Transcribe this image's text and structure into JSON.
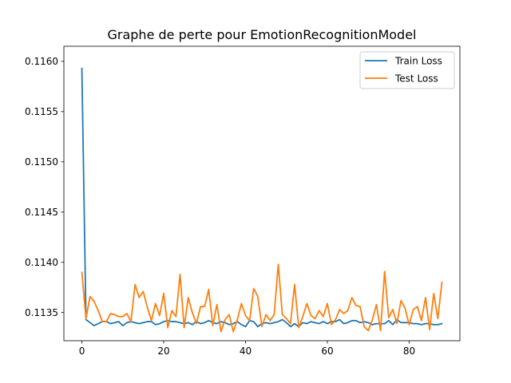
{
  "chart_data": {
    "type": "line",
    "title": "Graphe de perte pour EmotionRecognitionModel",
    "xlabel": "",
    "ylabel": "",
    "xlim": [
      -4.4,
      92.4
    ],
    "ylim": [
      0.11322,
      0.11615
    ],
    "x_ticks": [
      0,
      20,
      40,
      60,
      80
    ],
    "y_ticks": [
      0.1135,
      0.114,
      0.1145,
      0.115,
      0.1155,
      0.116
    ],
    "y_tick_labels": [
      "0.1135",
      "0.1140",
      "0.1145",
      "0.1150",
      "0.1155",
      "0.1160"
    ],
    "grid": false,
    "legend_position": "top-right",
    "x": [
      0,
      1,
      2,
      3,
      4,
      5,
      6,
      7,
      8,
      9,
      10,
      11,
      12,
      13,
      14,
      15,
      16,
      17,
      18,
      19,
      20,
      21,
      22,
      23,
      24,
      25,
      26,
      27,
      28,
      29,
      30,
      31,
      32,
      33,
      34,
      35,
      36,
      37,
      38,
      39,
      40,
      41,
      42,
      43,
      44,
      45,
      46,
      47,
      48,
      49,
      50,
      51,
      52,
      53,
      54,
      55,
      56,
      57,
      58,
      59,
      60,
      61,
      62,
      63,
      64,
      65,
      66,
      67,
      68,
      69,
      70,
      71,
      72,
      73,
      74,
      75,
      76,
      77,
      78,
      79,
      80,
      81,
      82,
      83,
      84,
      85,
      86,
      87,
      88
    ],
    "series": [
      {
        "name": "Train Loss",
        "color": "#1f77b4",
        "values": [
          0.11593,
          0.11343,
          0.1134,
          0.11337,
          0.11339,
          0.11341,
          0.11341,
          0.11339,
          0.1134,
          0.11341,
          0.11337,
          0.1134,
          0.11341,
          0.1134,
          0.11339,
          0.1134,
          0.11341,
          0.11341,
          0.11338,
          0.11339,
          0.11341,
          0.11342,
          0.11341,
          0.11341,
          0.1134,
          0.11339,
          0.1134,
          0.11338,
          0.11341,
          0.11339,
          0.1134,
          0.11342,
          0.1134,
          0.11339,
          0.11341,
          0.1134,
          0.11338,
          0.11339,
          0.11341,
          0.11338,
          0.11336,
          0.11342,
          0.11341,
          0.11336,
          0.11339,
          0.1134,
          0.11339,
          0.1134,
          0.11341,
          0.11343,
          0.1134,
          0.11336,
          0.11339,
          0.11336,
          0.1134,
          0.11339,
          0.11341,
          0.1134,
          0.11339,
          0.11341,
          0.11339,
          0.11341,
          0.11341,
          0.11343,
          0.11339,
          0.1134,
          0.11342,
          0.11342,
          0.1134,
          0.11341,
          0.1134,
          0.11338,
          0.11339,
          0.11339,
          0.11339,
          0.11342,
          0.11338,
          0.11343,
          0.1134,
          0.1134,
          0.1134,
          0.11339,
          0.11339,
          0.11338,
          0.11339,
          0.11339,
          0.11338,
          0.11338,
          0.11339
        ]
      },
      {
        "name": "Test Loss",
        "color": "#ff7f0e",
        "values": [
          0.1139,
          0.11344,
          0.11366,
          0.11361,
          0.11352,
          0.11341,
          0.11341,
          0.11349,
          0.11348,
          0.11346,
          0.11346,
          0.11349,
          0.11341,
          0.11378,
          0.11365,
          0.11371,
          0.11355,
          0.11342,
          0.11359,
          0.11347,
          0.11369,
          0.11335,
          0.11352,
          0.11346,
          0.11388,
          0.11335,
          0.11365,
          0.1135,
          0.11339,
          0.11356,
          0.11356,
          0.11373,
          0.11337,
          0.11358,
          0.11331,
          0.11343,
          0.11348,
          0.11331,
          0.11343,
          0.11359,
          0.11347,
          0.11342,
          0.11374,
          0.11366,
          0.11336,
          0.11348,
          0.11342,
          0.11348,
          0.11398,
          0.11348,
          0.11344,
          0.11339,
          0.11378,
          0.11335,
          0.11346,
          0.11359,
          0.11347,
          0.11344,
          0.11352,
          0.11346,
          0.11359,
          0.11338,
          0.11343,
          0.11353,
          0.11349,
          0.11352,
          0.11365,
          0.11357,
          0.11356,
          0.11336,
          0.11332,
          0.11343,
          0.11358,
          0.11332,
          0.11391,
          0.11345,
          0.11353,
          0.11339,
          0.11362,
          0.11354,
          0.11338,
          0.11353,
          0.11356,
          0.11342,
          0.11365,
          0.11333,
          0.11369,
          0.11344,
          0.1138
        ]
      }
    ]
  }
}
